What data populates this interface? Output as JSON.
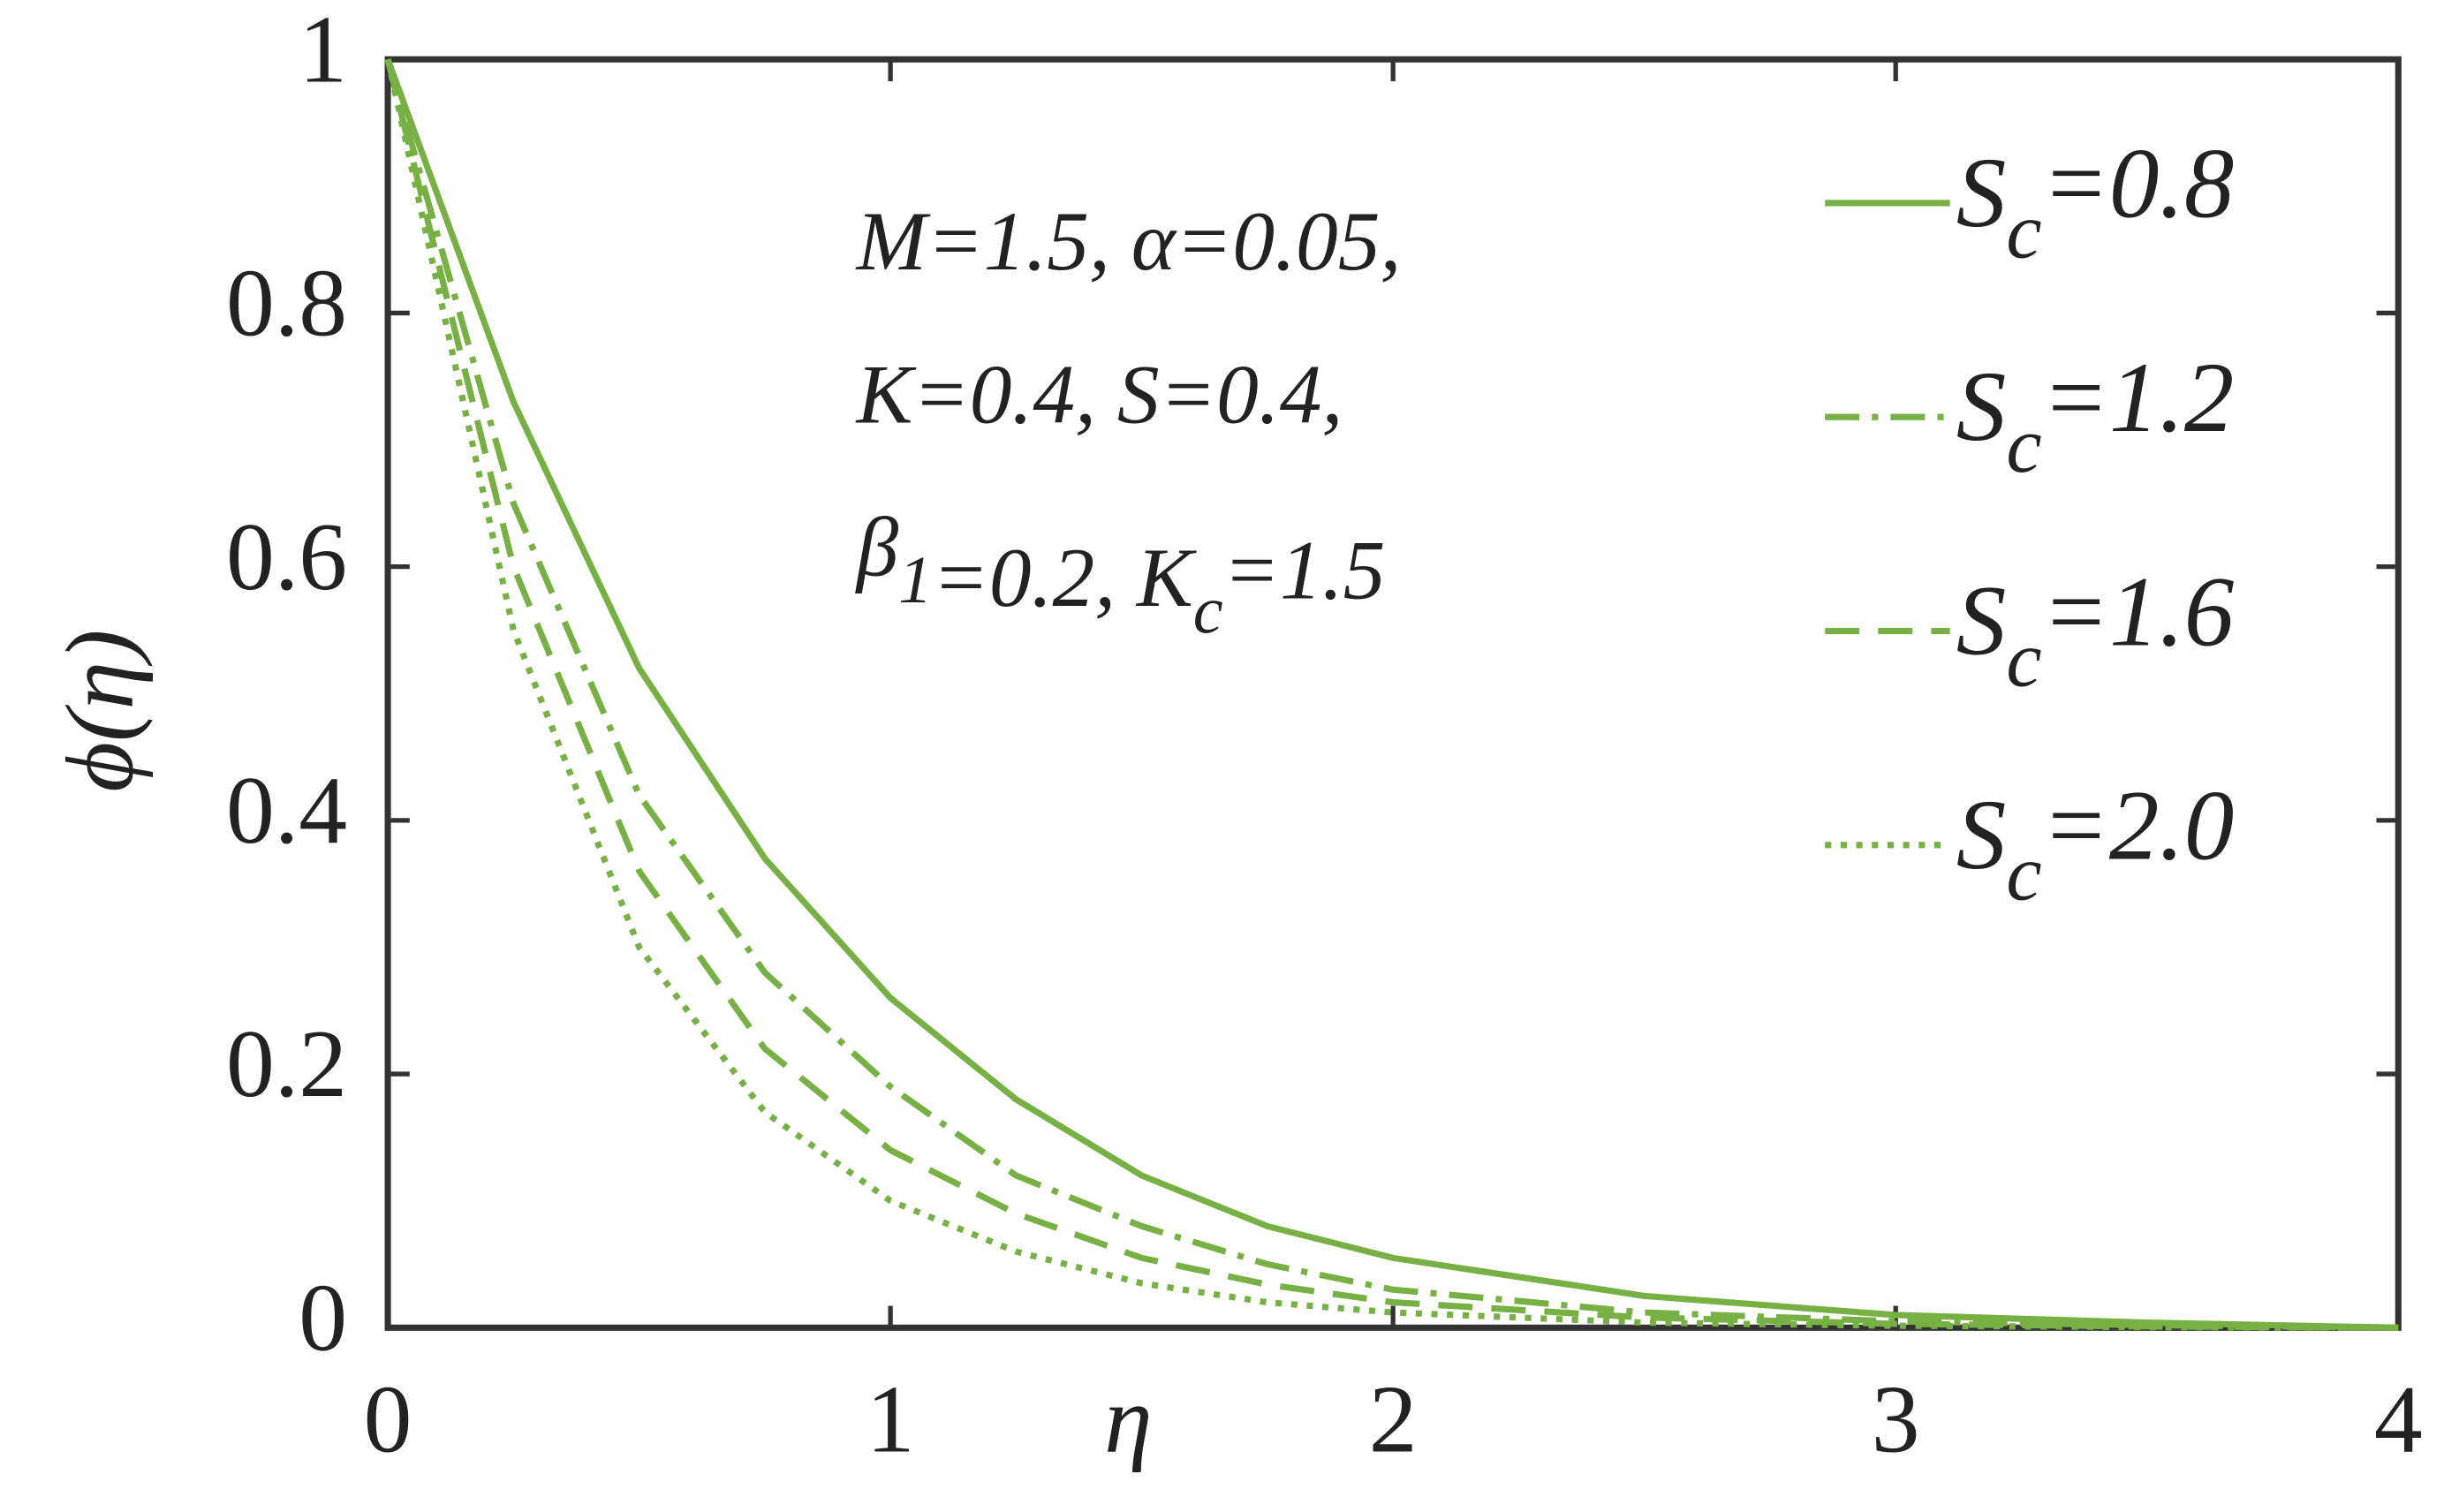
{
  "chart_data": {
    "type": "line",
    "x_label": "η",
    "y_label": "ϕ(η)",
    "annotation": [
      "M=1.5, α=0.05,",
      "K=0.4, S=0.4,",
      "β1=0.2, Kc=1.5"
    ],
    "x": [
      0,
      0.25,
      0.5,
      0.75,
      1,
      1.25,
      1.5,
      1.75,
      2,
      2.5,
      3,
      3.5,
      4
    ],
    "series": [
      {
        "name": "Sc=0.8",
        "color": "#77b043",
        "dash": "solid",
        "values": [
          1,
          0.73,
          0.52,
          0.37,
          0.26,
          0.18,
          0.12,
          0.08,
          0.055,
          0.025,
          0.01,
          0.004,
          0
        ]
      },
      {
        "name": "Sc=1.2",
        "color": "#77b043",
        "dash": "dashdot",
        "values": [
          1,
          0.65,
          0.42,
          0.28,
          0.19,
          0.12,
          0.08,
          0.05,
          0.03,
          0.012,
          0.005,
          0.002,
          0
        ]
      },
      {
        "name": "Sc=1.6",
        "color": "#77b043",
        "dash": "dashed",
        "values": [
          1,
          0.6,
          0.36,
          0.22,
          0.14,
          0.09,
          0.055,
          0.034,
          0.02,
          0.008,
          0.003,
          0.001,
          0
        ]
      },
      {
        "name": "Sc=2.0",
        "color": "#77b043",
        "dash": "dotted",
        "values": [
          1,
          0.55,
          0.3,
          0.17,
          0.1,
          0.06,
          0.035,
          0.02,
          0.012,
          0.004,
          0.0015,
          0.0005,
          0
        ]
      }
    ],
    "xlim": [
      0,
      4
    ],
    "xticks": [
      0,
      1,
      2,
      3,
      4
    ],
    "ylim": [
      0,
      1
    ],
    "yticks": [
      0,
      0.2,
      0.4,
      0.6,
      0.8,
      1
    ]
  }
}
